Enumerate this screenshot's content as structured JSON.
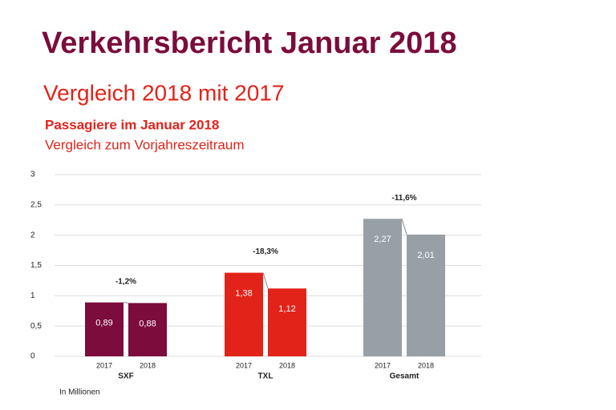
{
  "chart_data": {
    "type": "bar",
    "title": "Verkehrsbericht Januar 2018",
    "subtitle": "Vergleich 2018 mit 2017",
    "chart_title": "Passagiere im Januar 2018",
    "chart_subtitle": "Vergleich zum Vorjahreszeitraum",
    "unit_note": "In Millionen",
    "categories": [
      "SXF",
      "TXL",
      "Gesamt"
    ],
    "category_colors": [
      "#7b0c3c",
      "#e2231a",
      "#98a0a6"
    ],
    "series": [
      {
        "name": "2017",
        "values": [
          0.89,
          1.38,
          2.27
        ],
        "value_labels": [
          "0,89",
          "1,38",
          "2,27"
        ]
      },
      {
        "name": "2018",
        "values": [
          0.88,
          1.12,
          2.01
        ],
        "value_labels": [
          "0,88",
          "1,12",
          "2,01"
        ]
      }
    ],
    "changes": [
      "-1,2%",
      "-18,3%",
      "-11,6%"
    ],
    "ylim": [
      0,
      3
    ],
    "yticks": [
      0,
      {
        "value": 0.5,
        "label": "0,5"
      },
      1,
      {
        "value": 1.5,
        "label": "1,5"
      },
      2,
      {
        "value": 2.5,
        "label": "2,5"
      },
      3
    ],
    "grid": true
  }
}
